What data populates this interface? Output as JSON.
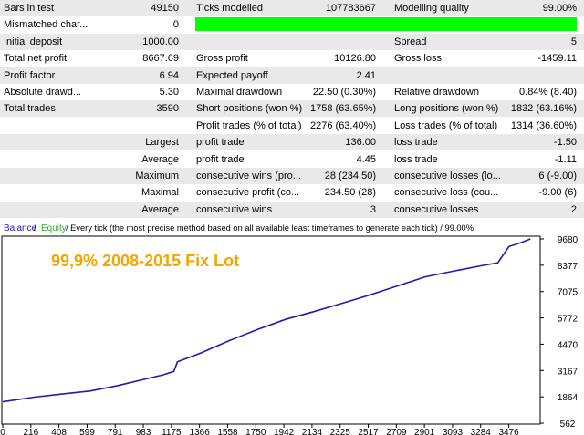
{
  "report": {
    "rows": [
      {
        "cells": [
          "Bars in test",
          "49150",
          "Ticks modelled",
          "107783667",
          "Modelling quality",
          "99.00%"
        ]
      },
      {
        "cells": [
          "Mismatched char...",
          "0",
          "",
          "",
          "",
          ""
        ]
      },
      {
        "cells": [
          "Initial deposit",
          "1000.00",
          "",
          "",
          "Spread",
          "5"
        ]
      },
      {
        "cells": [
          "Total net profit",
          "8667.69",
          "Gross profit",
          "10126.80",
          "Gross loss",
          "-1459.11"
        ]
      },
      {
        "cells": [
          "Profit factor",
          "6.94",
          "Expected payoff",
          "2.41",
          "",
          ""
        ]
      },
      {
        "cells": [
          "Absolute drawd...",
          "5.30",
          "Maximal drawdown",
          "22.50 (0.30%)",
          "Relative drawdown",
          "0.84% (8.40)"
        ]
      },
      {
        "cells": [
          "Total trades",
          "3590",
          "Short positions (won %)",
          "1758 (63.65%)",
          "Long positions (won %)",
          "1832 (63.16%)"
        ]
      },
      {
        "cells": [
          "",
          "",
          "Profit trades (% of total)",
          "2276 (63.40%)",
          "Loss trades (% of total)",
          "1314 (36.60%)"
        ]
      },
      {
        "cells": [
          "Largest",
          "",
          "profit trade",
          "136.00",
          "loss trade",
          "-1.50"
        ]
      },
      {
        "cells": [
          "Average",
          "",
          "profit trade",
          "4.45",
          "loss trade",
          "-1.11"
        ]
      },
      {
        "cells": [
          "Maximum",
          "",
          "consecutive wins (pro...",
          "28 (234.50)",
          "consecutive losses (lo...",
          "6 (-9.00)"
        ]
      },
      {
        "cells": [
          "Maximal",
          "",
          "consecutive profit (co...",
          "234.50 (28)",
          "consecutive loss (cou...",
          "-9.00 (6)"
        ]
      },
      {
        "cells": [
          "Average",
          "",
          "consecutive wins",
          "3",
          "consecutive losses",
          "2"
        ]
      }
    ],
    "quality_bar_color": "#00ff00"
  },
  "chart_data": {
    "type": "line",
    "legend": {
      "balance": "Balance",
      "separator": " / ",
      "equity": "Equity",
      "rest": " / Every tick (the most precise method based on all available least timeframes to generate each tick) / 99.00%"
    },
    "annotation": "99,9% 2008-2015 Fix Lot",
    "x_ticks": [
      "0",
      "216",
      "408",
      "599",
      "791",
      "983",
      "1175",
      "1366",
      "1558",
      "1750",
      "1942",
      "2134",
      "2325",
      "2517",
      "2709",
      "2901",
      "3093",
      "3284",
      "3476"
    ],
    "y_ticks": [
      "9680",
      "8377",
      "7075",
      "5772",
      "4470",
      "3167",
      "1864",
      "562"
    ],
    "xlim": [
      0,
      3624
    ],
    "ylim": [
      562,
      9680
    ],
    "series": [
      {
        "color": "#1c1cb0",
        "x": [
          0,
          216,
          408,
          599,
          791,
          983,
          1100,
          1175,
          1200,
          1366,
          1558,
          1750,
          1942,
          2134,
          2325,
          2517,
          2709,
          2901,
          3093,
          3284,
          3400,
          3476,
          3560,
          3624
        ],
        "y": [
          1620,
          1850,
          2000,
          2150,
          2420,
          2750,
          2950,
          3120,
          3600,
          4050,
          4650,
          5200,
          5700,
          6080,
          6480,
          6900,
          7350,
          7800,
          8080,
          8350,
          8500,
          9300,
          9500,
          9680
        ]
      }
    ],
    "colors": {
      "balance": "#1c1cb0",
      "equity": "#2fae2f",
      "annotation": "#f5a500",
      "axis": "#000000"
    }
  }
}
